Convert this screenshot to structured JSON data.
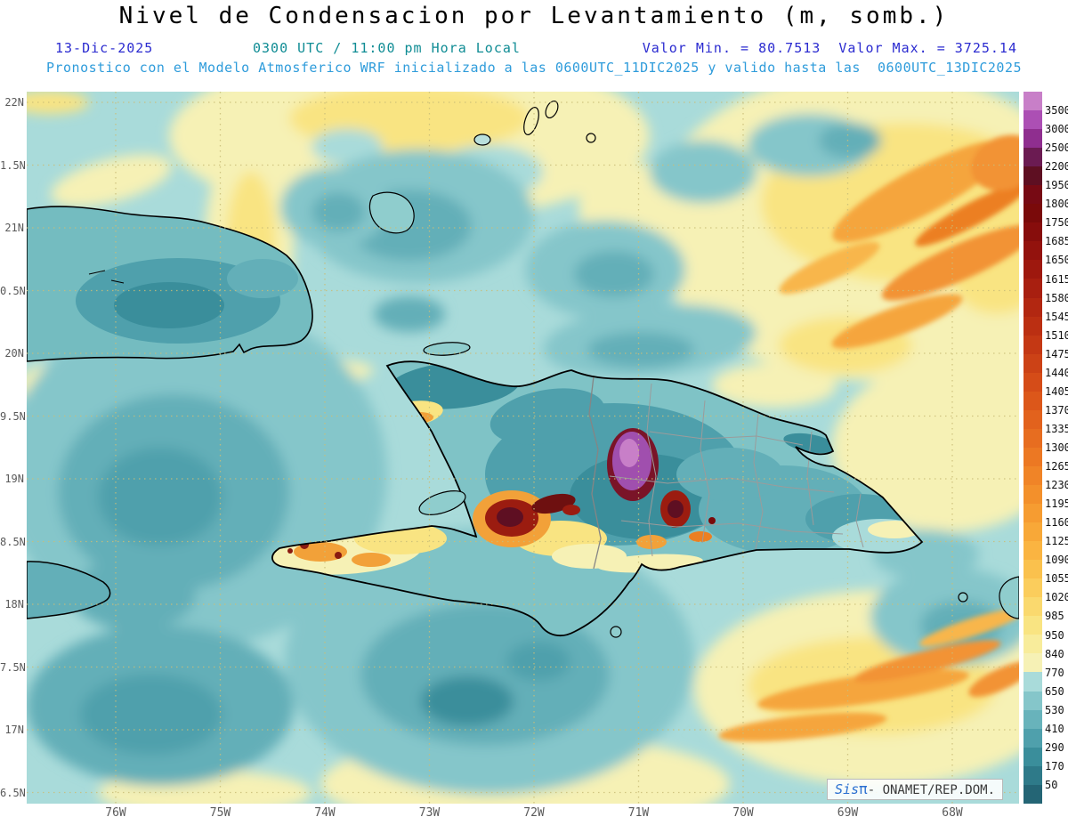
{
  "title": "Nivel de Condensacion por Levantamiento (m, somb.)",
  "header": {
    "date": "13-Dic-2025",
    "time": "0300 UTC / 11:00 pm Hora Local",
    "value_min_label": "Valor Min. = 80.7513",
    "value_max_label": "Valor Max. = 3725.14",
    "forecast": "Pronostico con el Modelo Atmosferico WRF inicializado a las 0600UTC_11DIC2025 y valido hasta las  0600UTC_13DIC2025"
  },
  "watermark": {
    "sis": "Sis",
    "pi": "π",
    "sep": "-",
    "org": "ONAMET/REP.DOM."
  },
  "colors": {
    "date_text": "#2B2BD0",
    "time_text": "#0F8C94",
    "valor_text": "#2B2BD0",
    "forecast_text": "#2F9CDB",
    "axis_text": "#5a5a5a",
    "colorbar_label_text": "#111111",
    "grid": "#C9BE78",
    "map_background": "#A9DBDA"
  },
  "chart_data": {
    "type": "heatmap",
    "variable": "Nivel de Condensacion por Levantamiento",
    "units": "m",
    "shading_note": "somb.",
    "value_min": 80.7513,
    "value_max": 3725.14,
    "valid_date": "13-Dic-2025",
    "valid_time": "0300 UTC / 11:00 pm Hora Local",
    "model": "WRF",
    "initialized": "0600UTC_11DIC2025",
    "valid_until": "0600UTC_13DIC2025",
    "x_ticks": [
      "76W",
      "75W",
      "74W",
      "73W",
      "72W",
      "71W",
      "70W",
      "69W",
      "68W"
    ],
    "y_ticks": [
      "22N",
      "1.5N",
      "21N",
      "0.5N",
      "20N",
      "9.5N",
      "19N",
      "8.5N",
      "18N",
      "7.5N",
      "17N",
      "6.5N"
    ],
    "y_ticks_note": "latitude labels are truncated at the left image edge (21.5N shows as 1.5N, etc.)",
    "colorbar": {
      "labels_top_to_bottom": [
        "3500",
        "3000",
        "2500",
        "2200",
        "1950",
        "1800",
        "1750",
        "1685",
        "1650",
        "1615",
        "1580",
        "1545",
        "1510",
        "1475",
        "1440",
        "1405",
        "1370",
        "1335",
        "1300",
        "1265",
        "1230",
        "1195",
        "1160",
        "1125",
        "1090",
        "1055",
        "1020",
        "985",
        "950",
        "840",
        "770",
        "650",
        "530",
        "410",
        "290",
        "170",
        "50"
      ],
      "colors_top_to_bottom": [
        "#C87FC8",
        "#AC4FB4",
        "#8F2E8F",
        "#6B1B52",
        "#5E0F22",
        "#770A14",
        "#7A0A0A",
        "#870D0C",
        "#93120D",
        "#9E180E",
        "#A81F10",
        "#B22711",
        "#BB2F12",
        "#C43814",
        "#CC4216",
        "#D54C18",
        "#DC571A",
        "#E2621D",
        "#E76D20",
        "#EC7823",
        "#F08427",
        "#F3902B",
        "#F69C31",
        "#F8A838",
        "#FAB441",
        "#FAC14D",
        "#FBCD5C",
        "#FAD96E",
        "#F9E482",
        "#F8EC9B",
        "#F6F1B5",
        "#A9DBDA",
        "#85C6CA",
        "#68B3BB",
        "#4FA0AC",
        "#3A8E9B",
        "#2E7A89",
        "#246575"
      ]
    }
  }
}
